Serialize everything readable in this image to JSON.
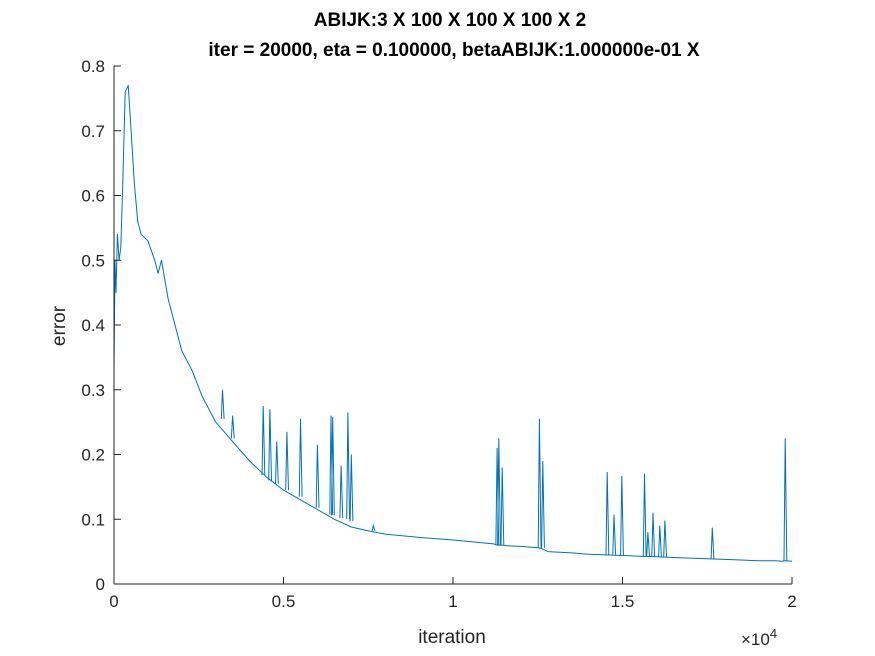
{
  "chart_data": {
    "type": "line",
    "title": "ABIJK:3 X 100 X 100 X 100 X 2",
    "subtitle": "iter = 20000, eta = 0.100000, betaABIJK:1.000000e-01 X",
    "xlabel": "iteration",
    "ylabel": "error",
    "xlim": [
      0,
      20000
    ],
    "ylim": [
      0,
      0.8
    ],
    "x_exponent_label": "×10",
    "x_exponent_power": "4",
    "x_ticks": [
      0,
      5000,
      10000,
      15000,
      20000
    ],
    "x_tick_labels": [
      "0",
      "0.5",
      "1",
      "1.5",
      "2"
    ],
    "y_ticks": [
      0,
      0.1,
      0.2,
      0.3,
      0.4,
      0.5,
      0.6,
      0.7,
      0.8
    ],
    "y_tick_labels": [
      "0",
      "0.1",
      "0.2",
      "0.3",
      "0.4",
      "0.5",
      "0.6",
      "0.7",
      "0.8"
    ],
    "grid": false,
    "legend": "none",
    "line_color": "#0072BD",
    "series": [
      {
        "x": [
          0,
          30,
          60,
          100,
          150,
          200,
          260,
          330,
          420,
          480,
          600,
          700,
          800,
          1000,
          1200,
          1300,
          1400,
          1500,
          1600,
          1800,
          2000,
          2300,
          2600,
          3000,
          3500,
          4000,
          4500,
          5000,
          5500,
          6000,
          6500,
          7000,
          7500,
          8000,
          9000,
          10000,
          11000,
          11200,
          11300,
          11450,
          11600,
          12000,
          12500,
          12600,
          12800,
          13500,
          14000,
          14500,
          15000,
          15500,
          16000,
          16500,
          17000,
          17500,
          18000,
          18500,
          19000,
          19500,
          19700,
          19800,
          20000
        ],
        "y": [
          0.33,
          0.5,
          0.45,
          0.54,
          0.5,
          0.52,
          0.62,
          0.76,
          0.77,
          0.72,
          0.62,
          0.56,
          0.54,
          0.53,
          0.5,
          0.48,
          0.5,
          0.47,
          0.44,
          0.4,
          0.36,
          0.33,
          0.29,
          0.25,
          0.22,
          0.19,
          0.165,
          0.145,
          0.13,
          0.115,
          0.1,
          0.088,
          0.082,
          0.077,
          0.072,
          0.068,
          0.063,
          0.062,
          0.06,
          0.06,
          0.059,
          0.058,
          0.056,
          0.055,
          0.05,
          0.048,
          0.046,
          0.045,
          0.044,
          0.043,
          0.042,
          0.041,
          0.04,
          0.039,
          0.038,
          0.037,
          0.036,
          0.036,
          0.035,
          0.036,
          0.035
        ]
      }
    ],
    "spikes": [
      {
        "x": 3200,
        "base": 0.255,
        "peak": 0.3
      },
      {
        "x": 3500,
        "base": 0.225,
        "peak": 0.26
      },
      {
        "x": 4400,
        "base": 0.168,
        "peak": 0.275
      },
      {
        "x": 4600,
        "base": 0.16,
        "peak": 0.27
      },
      {
        "x": 4800,
        "base": 0.155,
        "peak": 0.22
      },
      {
        "x": 5100,
        "base": 0.145,
        "peak": 0.235
      },
      {
        "x": 5500,
        "base": 0.135,
        "peak": 0.255
      },
      {
        "x": 6000,
        "base": 0.118,
        "peak": 0.215
      },
      {
        "x": 6400,
        "base": 0.107,
        "peak": 0.26
      },
      {
        "x": 6450,
        "base": 0.106,
        "peak": 0.258
      },
      {
        "x": 6700,
        "base": 0.102,
        "peak": 0.183
      },
      {
        "x": 6900,
        "base": 0.1,
        "peak": 0.265
      },
      {
        "x": 7000,
        "base": 0.097,
        "peak": 0.2
      },
      {
        "x": 7650,
        "base": 0.082,
        "peak": 0.09
      },
      {
        "x": 11300,
        "base": 0.06,
        "peak": 0.21
      },
      {
        "x": 11350,
        "base": 0.06,
        "peak": 0.225
      },
      {
        "x": 11450,
        "base": 0.06,
        "peak": 0.18
      },
      {
        "x": 12550,
        "base": 0.056,
        "peak": 0.255
      },
      {
        "x": 12650,
        "base": 0.056,
        "peak": 0.19
      },
      {
        "x": 14550,
        "base": 0.045,
        "peak": 0.173
      },
      {
        "x": 14750,
        "base": 0.045,
        "peak": 0.107
      },
      {
        "x": 14980,
        "base": 0.044,
        "peak": 0.167
      },
      {
        "x": 15650,
        "base": 0.043,
        "peak": 0.17
      },
      {
        "x": 15750,
        "base": 0.043,
        "peak": 0.08
      },
      {
        "x": 15900,
        "base": 0.042,
        "peak": 0.11
      },
      {
        "x": 16100,
        "base": 0.042,
        "peak": 0.09
      },
      {
        "x": 16250,
        "base": 0.042,
        "peak": 0.098
      },
      {
        "x": 17650,
        "base": 0.039,
        "peak": 0.087
      },
      {
        "x": 19800,
        "base": 0.036,
        "peak": 0.225
      }
    ]
  }
}
